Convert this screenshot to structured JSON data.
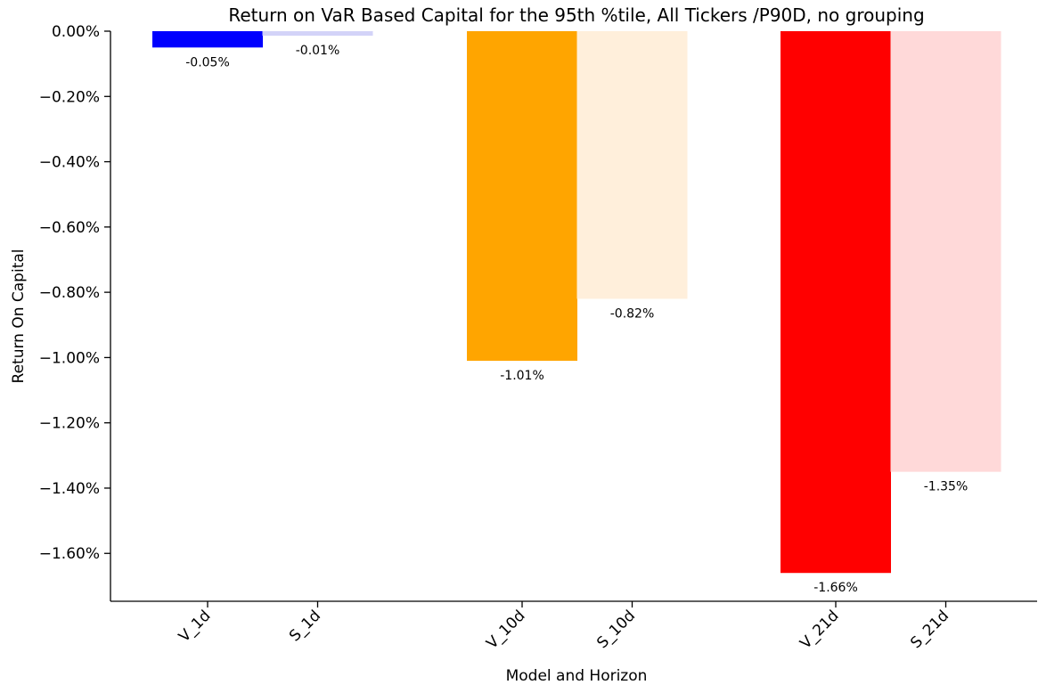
{
  "chart_data": {
    "type": "bar",
    "title": "Return on VaR Based Capital for the 95th %tile, All Tickers /P90D, no grouping",
    "xlabel": "Model and Horizon",
    "ylabel": "Return On Capital",
    "ylim": [
      -1.7467,
      0.0
    ],
    "yticks": [
      0.0,
      -0.2,
      -0.4,
      -0.6,
      -0.8,
      -1.0,
      -1.2,
      -1.4,
      -1.6
    ],
    "ytick_labels": [
      "0.00%",
      "−0.20%",
      "−0.40%",
      "−0.60%",
      "−0.80%",
      "−1.00%",
      "−1.20%",
      "−1.40%",
      "−1.60%"
    ],
    "grid": false,
    "bars": [
      {
        "category": "V_1d",
        "value": -0.05,
        "label": "-0.05%",
        "color": "#0000ff",
        "group": 0
      },
      {
        "category": "S_1d",
        "value": -0.014,
        "label": "-0.01%",
        "color": "#d3d3f8",
        "group": 0
      },
      {
        "category": "V_10d",
        "value": -1.01,
        "label": "-1.01%",
        "color": "#ffa500",
        "group": 1
      },
      {
        "category": "S_10d",
        "value": -0.82,
        "label": "-0.82%",
        "color": "#ffefdb",
        "group": 1
      },
      {
        "category": "V_21d",
        "value": -1.66,
        "label": "-1.66%",
        "color": "#ff0000",
        "group": 2
      },
      {
        "category": "S_21d",
        "value": -1.35,
        "label": "-1.35%",
        "color": "#ffd9d9",
        "group": 2
      }
    ]
  }
}
